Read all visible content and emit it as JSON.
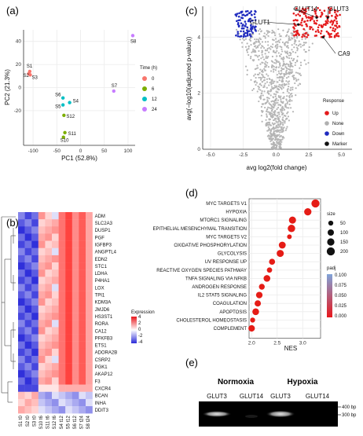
{
  "panels": {
    "a": "(a)",
    "b": "(b)",
    "c": "(c)",
    "d": "(d)",
    "e": "(e)"
  },
  "pca": {
    "xlabel": "PC1 (52.8%)",
    "ylabel": "PC2 (21.3%)",
    "xticks": [
      "-100",
      "-50",
      "0",
      "50",
      "100"
    ],
    "yticks": [
      "40",
      "20",
      "0",
      "-20"
    ],
    "legend_title": "Time (h)",
    "groups": [
      {
        "name": "0",
        "color": "#f8766d"
      },
      {
        "name": "6",
        "color": "#7cae00"
      },
      {
        "name": "12",
        "color": "#00bfc4"
      },
      {
        "name": "24",
        "color": "#c77cff"
      }
    ],
    "points": [
      {
        "label": "S1",
        "x": -107,
        "y": 14,
        "group": "0"
      },
      {
        "label": "S2",
        "x": -109,
        "y": 12,
        "group": "0"
      },
      {
        "label": "S3",
        "x": -106,
        "y": 11,
        "group": "0"
      },
      {
        "label": "S4",
        "x": -23,
        "y": -13,
        "group": "12"
      },
      {
        "label": "S5",
        "x": -37,
        "y": -15,
        "group": "12"
      },
      {
        "label": "S6",
        "x": -37,
        "y": -9,
        "group": "12"
      },
      {
        "label": "S7",
        "x": 70,
        "y": -3,
        "group": "24"
      },
      {
        "label": "S8",
        "x": 110,
        "y": 45,
        "group": "24"
      },
      {
        "label": "S10",
        "x": -36,
        "y": -43,
        "group": "6"
      },
      {
        "label": "S11",
        "x": -33,
        "y": -39,
        "group": "6"
      },
      {
        "label": "S12",
        "x": -35,
        "y": -24,
        "group": "6"
      }
    ]
  },
  "heatmap": {
    "legend_title": "Expression",
    "legend_ticks": [
      "4",
      "2",
      "0",
      "-2",
      "-4"
    ],
    "genes": [
      "ADM",
      "SLC2A3",
      "DUSP1",
      "PGF",
      "IGFBP3",
      "ANGPTL4",
      "EDN2",
      "STC1",
      "LDHA",
      "P4HA1",
      "LOX",
      "TPI1",
      "KDM3A",
      "JMJD6",
      "HS3ST1",
      "RORA",
      "CA12",
      "PFKFB3",
      "ETS1",
      "ADORA2B",
      "CSRP2",
      "PGK1",
      "AKAP12",
      "F3",
      "CXCR4",
      "BCAN",
      "INHA",
      "DDIT3"
    ],
    "samples": [
      "S1 t0",
      "S2 t0",
      "S3 t0",
      "S10 t6",
      "S11 t6",
      "S12 t6",
      "S4 t12",
      "S5 t12",
      "S6 t12",
      "S7 t24",
      "S8 t24"
    ]
  },
  "volcano": {
    "xlabel": "avg log2(fold change)",
    "ylabel": "avg(−log10(adjusted p-value))",
    "xticks": [
      "-5.0",
      "-2.5",
      "0.0",
      "2.5",
      "5.0"
    ],
    "yticks": [
      "0",
      "2",
      "4"
    ],
    "legend_title": "Response",
    "legend": [
      {
        "name": "Up",
        "color": "#e41a1c"
      },
      {
        "name": "None",
        "color": "#b0b0b0"
      },
      {
        "name": "Down",
        "color": "#1f2bbf"
      },
      {
        "name": "Marker",
        "color": "#111111"
      }
    ],
    "markers": [
      "GLUT1",
      "GLUT14",
      "GLUT3",
      "CA9"
    ]
  },
  "chart_data": [
    {
      "type": "scatter",
      "xlabel": "PC1 (52.8%)",
      "ylabel": "PC2 (21.3%)",
      "xlim": [
        -120,
        115
      ],
      "ylim": [
        -50,
        50
      ],
      "series": [
        {
          "name": "0",
          "points": [
            [
              -107,
              14
            ],
            [
              -109,
              12
            ],
            [
              -106,
              11
            ]
          ]
        },
        {
          "name": "6",
          "points": [
            [
              -36,
              -43
            ],
            [
              -33,
              -39
            ],
            [
              -35,
              -24
            ]
          ]
        },
        {
          "name": "12",
          "points": [
            [
              -23,
              -13
            ],
            [
              -37,
              -15
            ],
            [
              -37,
              -9
            ]
          ]
        },
        {
          "name": "24",
          "points": [
            [
              70,
              -3
            ],
            [
              110,
              45
            ]
          ]
        }
      ]
    },
    {
      "type": "scatter",
      "xlabel": "NES",
      "xticks": [
        "2.0",
        "2.5",
        "3.0"
      ],
      "xlim": [
        1.95,
        3.35
      ],
      "legend_size_title": "size",
      "legend_size_values": [
        50,
        100,
        150,
        200
      ],
      "legend_color_title": "padj",
      "legend_color_ticks": [
        "0.100",
        "0.075",
        "0.050",
        "0.025",
        "0.000"
      ],
      "categories": [
        "MYC TARGETS V1",
        "HYPOXIA",
        "MTORC1 SIGNALING",
        "EPITHELIAL MESENCHYMAL TRANSITION",
        "MYC TARGETS V2",
        "OXIDATIVE PHOSPHORYLATION",
        "GLYCOLYSIS",
        "UV RESPONSE UP",
        "REACTIVE OXYGEN SPECIES PATHWAY",
        "TNFA SIGNALING VIA NFKB",
        "ANDROGEN RESPONSE",
        "IL2 STAT5 SIGNALING",
        "COAGULATION",
        "APOPTOSIS",
        "CHOLESTEROL HOMEOSTASIS",
        "COMPLEMENT"
      ],
      "values": [
        3.25,
        3.1,
        2.8,
        2.78,
        2.74,
        2.6,
        2.56,
        2.4,
        2.35,
        2.3,
        2.2,
        2.15,
        2.12,
        2.08,
        2.02,
        2.0
      ],
      "sizes": [
        200,
        150,
        140,
        160,
        40,
        130,
        140,
        90,
        60,
        120,
        80,
        110,
        100,
        120,
        50,
        110
      ]
    }
  ],
  "gel": {
    "groups": [
      {
        "name": "Normoxia",
        "lanes": [
          "GLUT3",
          "GLUT14"
        ]
      },
      {
        "name": "Hypoxia",
        "lanes": [
          "GLUT3",
          "GLUT14"
        ]
      }
    ],
    "markers": [
      "400 bp",
      "300 bp"
    ]
  }
}
